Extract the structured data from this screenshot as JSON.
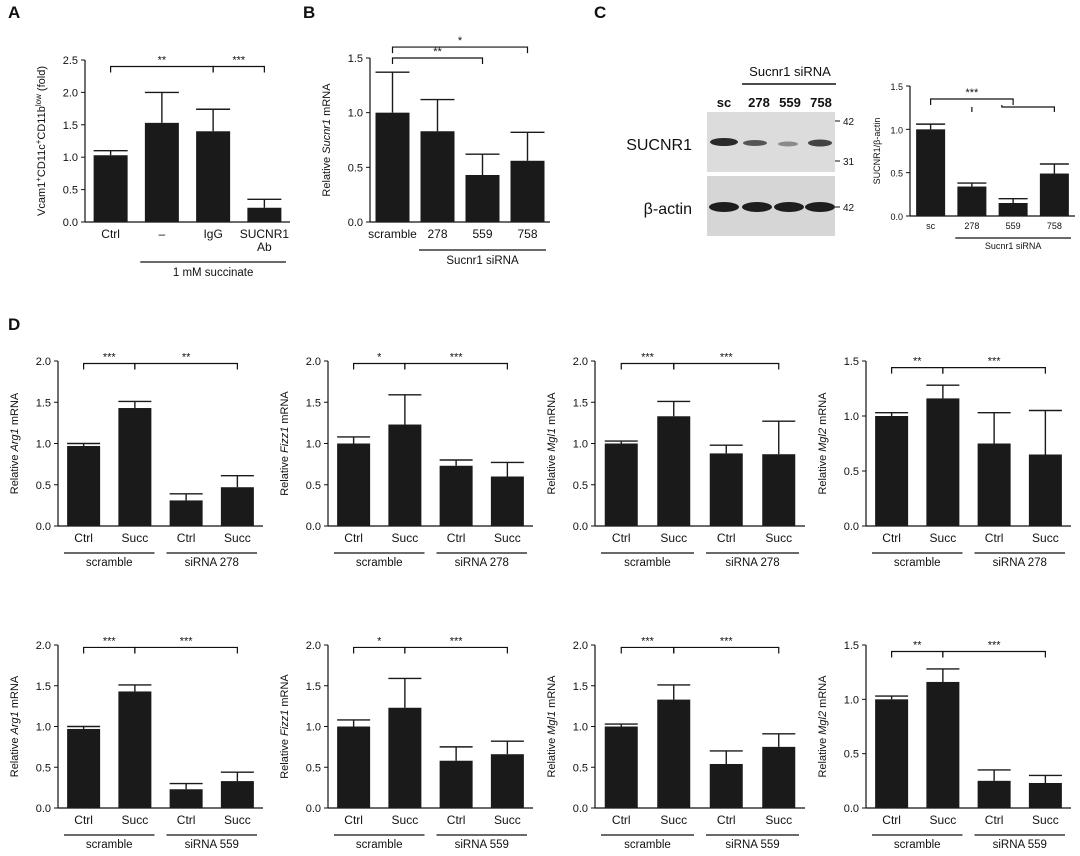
{
  "panels": [
    "A",
    "B",
    "C",
    "D"
  ],
  "colors": {
    "bar": "#1a1a1a",
    "axis": "#111111",
    "blot_bg": "#d9d9d9",
    "band": "#222222"
  },
  "chart_data": [
    {
      "id": "A",
      "type": "bar",
      "ylabel_parts": [
        "Vcam1",
        "+",
        "CD11c",
        "+",
        "CD11b",
        "low",
        " (fold)"
      ],
      "ylim": [
        0,
        2.5
      ],
      "yticks": [
        "0.0",
        "0.5",
        "1.0",
        "1.5",
        "2.0",
        "2.5"
      ],
      "categories": [
        "Ctrl",
        "–",
        "IgG",
        "SUCNR1 Ab"
      ],
      "cat_lines": [
        [
          "Ctrl"
        ],
        [
          "–"
        ],
        [
          "IgG"
        ],
        [
          "SUCNR1",
          "Ab"
        ]
      ],
      "values": [
        1.03,
        1.53,
        1.4,
        0.22
      ],
      "errors": [
        0.07,
        0.47,
        0.34,
        0.13
      ],
      "groups": [
        {
          "label": "1 mM succinate",
          "from": 1,
          "to": 3
        }
      ],
      "sig": [
        {
          "from": 0,
          "to": 2,
          "label": "**",
          "y": 2.4
        },
        {
          "from": 2,
          "to": 3,
          "label": "***",
          "y": 2.4
        }
      ]
    },
    {
      "id": "B",
      "type": "bar",
      "ylabel_parts": [
        "Relative ",
        "Sucnr1",
        " mRNA"
      ],
      "ylim": [
        0,
        1.5
      ],
      "yticks": [
        "0.0",
        "0.5",
        "1.0",
        "1.5"
      ],
      "categories": [
        "scramble",
        "278",
        "559",
        "758"
      ],
      "values": [
        1.0,
        0.83,
        0.43,
        0.56
      ],
      "errors": [
        0.37,
        0.29,
        0.19,
        0.26
      ],
      "groups": [
        {
          "label": "Sucnr1 siRNA",
          "from": 1,
          "to": 3
        }
      ],
      "sig": [
        {
          "from": 0,
          "to": 2,
          "label": "**",
          "y": 1.5
        },
        {
          "from": 0,
          "to": 3,
          "label": "*",
          "y": 1.6
        }
      ]
    },
    {
      "id": "C",
      "type": "bar",
      "ylabel_parts": [
        "SUCNR1/β-actin"
      ],
      "ylim": [
        0,
        1.5
      ],
      "yticks": [
        "0.0",
        "0.5",
        "1.0",
        "1.5"
      ],
      "categories": [
        "sc",
        "278",
        "559",
        "758"
      ],
      "values": [
        1.0,
        0.34,
        0.15,
        0.49
      ],
      "errors": [
        0.06,
        0.04,
        0.05,
        0.11
      ],
      "groups": [
        {
          "label": "Sucnr1 siRNA",
          "from": 1,
          "to": 3
        }
      ],
      "sig": [
        {
          "label": "***",
          "from": 0,
          "to": 2,
          "y": 1.35,
          "bracket_to": 3
        }
      ]
    },
    {
      "id": "D1",
      "type": "bar",
      "ylabel_parts": [
        "Relative ",
        "Arg1",
        " mRNA"
      ],
      "ylim": [
        0,
        2.0
      ],
      "yticks": [
        "0.0",
        "0.5",
        "1.0",
        "1.5",
        "2.0"
      ],
      "categories": [
        "Ctrl",
        "Succ",
        "Ctrl",
        "Succ"
      ],
      "values": [
        0.97,
        1.43,
        0.31,
        0.47
      ],
      "errors": [
        0.03,
        0.08,
        0.08,
        0.14
      ],
      "groups": [
        {
          "label": "scramble",
          "from": 0,
          "to": 1
        },
        {
          "label": "siRNA 278",
          "from": 2,
          "to": 3
        }
      ],
      "sig": [
        {
          "from": 0,
          "to": 1,
          "label": "***",
          "y": 1.97
        },
        {
          "from": 1,
          "to": 3,
          "label": "**",
          "y": 1.97
        }
      ]
    },
    {
      "id": "D2",
      "type": "bar",
      "ylabel_parts": [
        "Relative ",
        "Fizz1",
        " mRNA"
      ],
      "ylim": [
        0,
        2.0
      ],
      "yticks": [
        "0.0",
        "0.5",
        "1.0",
        "1.5",
        "2.0"
      ],
      "categories": [
        "Ctrl",
        "Succ",
        "Ctrl",
        "Succ"
      ],
      "values": [
        1.0,
        1.23,
        0.73,
        0.6
      ],
      "errors": [
        0.08,
        0.36,
        0.07,
        0.17
      ],
      "groups": [
        {
          "label": "scramble",
          "from": 0,
          "to": 1
        },
        {
          "label": "siRNA 278",
          "from": 2,
          "to": 3
        }
      ],
      "sig": [
        {
          "from": 0,
          "to": 1,
          "label": "*",
          "y": 1.97
        },
        {
          "from": 1,
          "to": 3,
          "label": "***",
          "y": 1.97
        }
      ]
    },
    {
      "id": "D3",
      "type": "bar",
      "ylabel_parts": [
        "Relative ",
        "Mgl1",
        " mRNA"
      ],
      "ylim": [
        0,
        2.0
      ],
      "yticks": [
        "0.0",
        "0.5",
        "1.0",
        "1.5",
        "2.0"
      ],
      "categories": [
        "Ctrl",
        "Succ",
        "Ctrl",
        "Succ"
      ],
      "values": [
        1.0,
        1.33,
        0.88,
        0.87
      ],
      "errors": [
        0.03,
        0.18,
        0.1,
        0.4
      ],
      "groups": [
        {
          "label": "scramble",
          "from": 0,
          "to": 1
        },
        {
          "label": "siRNA 278",
          "from": 2,
          "to": 3
        }
      ],
      "sig": [
        {
          "from": 0,
          "to": 1,
          "label": "***",
          "y": 1.97
        },
        {
          "from": 1,
          "to": 3,
          "label": "***",
          "y": 1.97
        }
      ]
    },
    {
      "id": "D4",
      "type": "bar",
      "ylabel_parts": [
        "Relative ",
        "Mgl2",
        " mRNA"
      ],
      "ylim": [
        0,
        1.5
      ],
      "yticks": [
        "0.0",
        "0.5",
        "1.0",
        "1.5"
      ],
      "categories": [
        "Ctrl",
        "Succ",
        "Ctrl",
        "Succ"
      ],
      "values": [
        1.0,
        1.16,
        0.75,
        0.65
      ],
      "errors": [
        0.03,
        0.12,
        0.28,
        0.4
      ],
      "groups": [
        {
          "label": "scramble",
          "from": 0,
          "to": 1
        },
        {
          "label": "siRNA 278",
          "from": 2,
          "to": 3
        }
      ],
      "sig": [
        {
          "from": 0,
          "to": 1,
          "label": "**",
          "y": 1.44
        },
        {
          "from": 1,
          "to": 3,
          "label": "***",
          "y": 1.44
        }
      ]
    },
    {
      "id": "D5",
      "type": "bar",
      "ylabel_parts": [
        "Relative ",
        "Arg1",
        " mRNA"
      ],
      "ylim": [
        0,
        2.0
      ],
      "yticks": [
        "0.0",
        "0.5",
        "1.0",
        "1.5",
        "2.0"
      ],
      "categories": [
        "Ctrl",
        "Succ",
        "Ctrl",
        "Succ"
      ],
      "values": [
        0.97,
        1.43,
        0.23,
        0.33
      ],
      "errors": [
        0.03,
        0.08,
        0.07,
        0.11
      ],
      "groups": [
        {
          "label": "scramble",
          "from": 0,
          "to": 1
        },
        {
          "label": "siRNA 559",
          "from": 2,
          "to": 3
        }
      ],
      "sig": [
        {
          "from": 0,
          "to": 1,
          "label": "***",
          "y": 1.97
        },
        {
          "from": 1,
          "to": 3,
          "label": "***",
          "y": 1.97
        }
      ]
    },
    {
      "id": "D6",
      "type": "bar",
      "ylabel_parts": [
        "Relative ",
        "Fizz1",
        " mRNA"
      ],
      "ylim": [
        0,
        2.0
      ],
      "yticks": [
        "0.0",
        "0.5",
        "1.0",
        "1.5",
        "2.0"
      ],
      "categories": [
        "Ctrl",
        "Succ",
        "Ctrl",
        "Succ"
      ],
      "values": [
        1.0,
        1.23,
        0.58,
        0.66
      ],
      "errors": [
        0.08,
        0.36,
        0.17,
        0.16
      ],
      "groups": [
        {
          "label": "scramble",
          "from": 0,
          "to": 1
        },
        {
          "label": "siRNA 559",
          "from": 2,
          "to": 3
        }
      ],
      "sig": [
        {
          "from": 0,
          "to": 1,
          "label": "*",
          "y": 1.97
        },
        {
          "from": 1,
          "to": 3,
          "label": "***",
          "y": 1.97
        }
      ]
    },
    {
      "id": "D7",
      "type": "bar",
      "ylabel_parts": [
        "Relative ",
        "Mgl1",
        " mRNA"
      ],
      "ylim": [
        0,
        2.0
      ],
      "yticks": [
        "0.0",
        "0.5",
        "1.0",
        "1.5",
        "2.0"
      ],
      "categories": [
        "Ctrl",
        "Succ",
        "Ctrl",
        "Succ"
      ],
      "values": [
        1.0,
        1.33,
        0.54,
        0.75
      ],
      "errors": [
        0.03,
        0.18,
        0.16,
        0.16
      ],
      "groups": [
        {
          "label": "scramble",
          "from": 0,
          "to": 1
        },
        {
          "label": "siRNA 559",
          "from": 2,
          "to": 3
        }
      ],
      "sig": [
        {
          "from": 0,
          "to": 1,
          "label": "***",
          "y": 1.97
        },
        {
          "from": 1,
          "to": 3,
          "label": "***",
          "y": 1.97
        }
      ]
    },
    {
      "id": "D8",
      "type": "bar",
      "ylabel_parts": [
        "Relative ",
        "Mgl2",
        " mRNA"
      ],
      "ylim": [
        0,
        1.5
      ],
      "yticks": [
        "0.0",
        "0.5",
        "1.0",
        "1.5"
      ],
      "categories": [
        "Ctrl",
        "Succ",
        "Ctrl",
        "Succ"
      ],
      "values": [
        1.0,
        1.16,
        0.25,
        0.23
      ],
      "errors": [
        0.03,
        0.12,
        0.1,
        0.07
      ],
      "groups": [
        {
          "label": "scramble",
          "from": 0,
          "to": 1
        },
        {
          "label": "siRNA 559",
          "from": 2,
          "to": 3
        }
      ],
      "sig": [
        {
          "from": 0,
          "to": 1,
          "label": "**",
          "y": 1.44
        },
        {
          "from": 1,
          "to": 3,
          "label": "***",
          "y": 1.44
        }
      ]
    }
  ],
  "blot": {
    "header": "Sucnr1 siRNA",
    "lanes": [
      "sc",
      "278",
      "559",
      "758"
    ],
    "proteins": [
      "SUCNR1",
      "β-actin"
    ],
    "markers": [
      "42",
      "31",
      "42"
    ]
  }
}
